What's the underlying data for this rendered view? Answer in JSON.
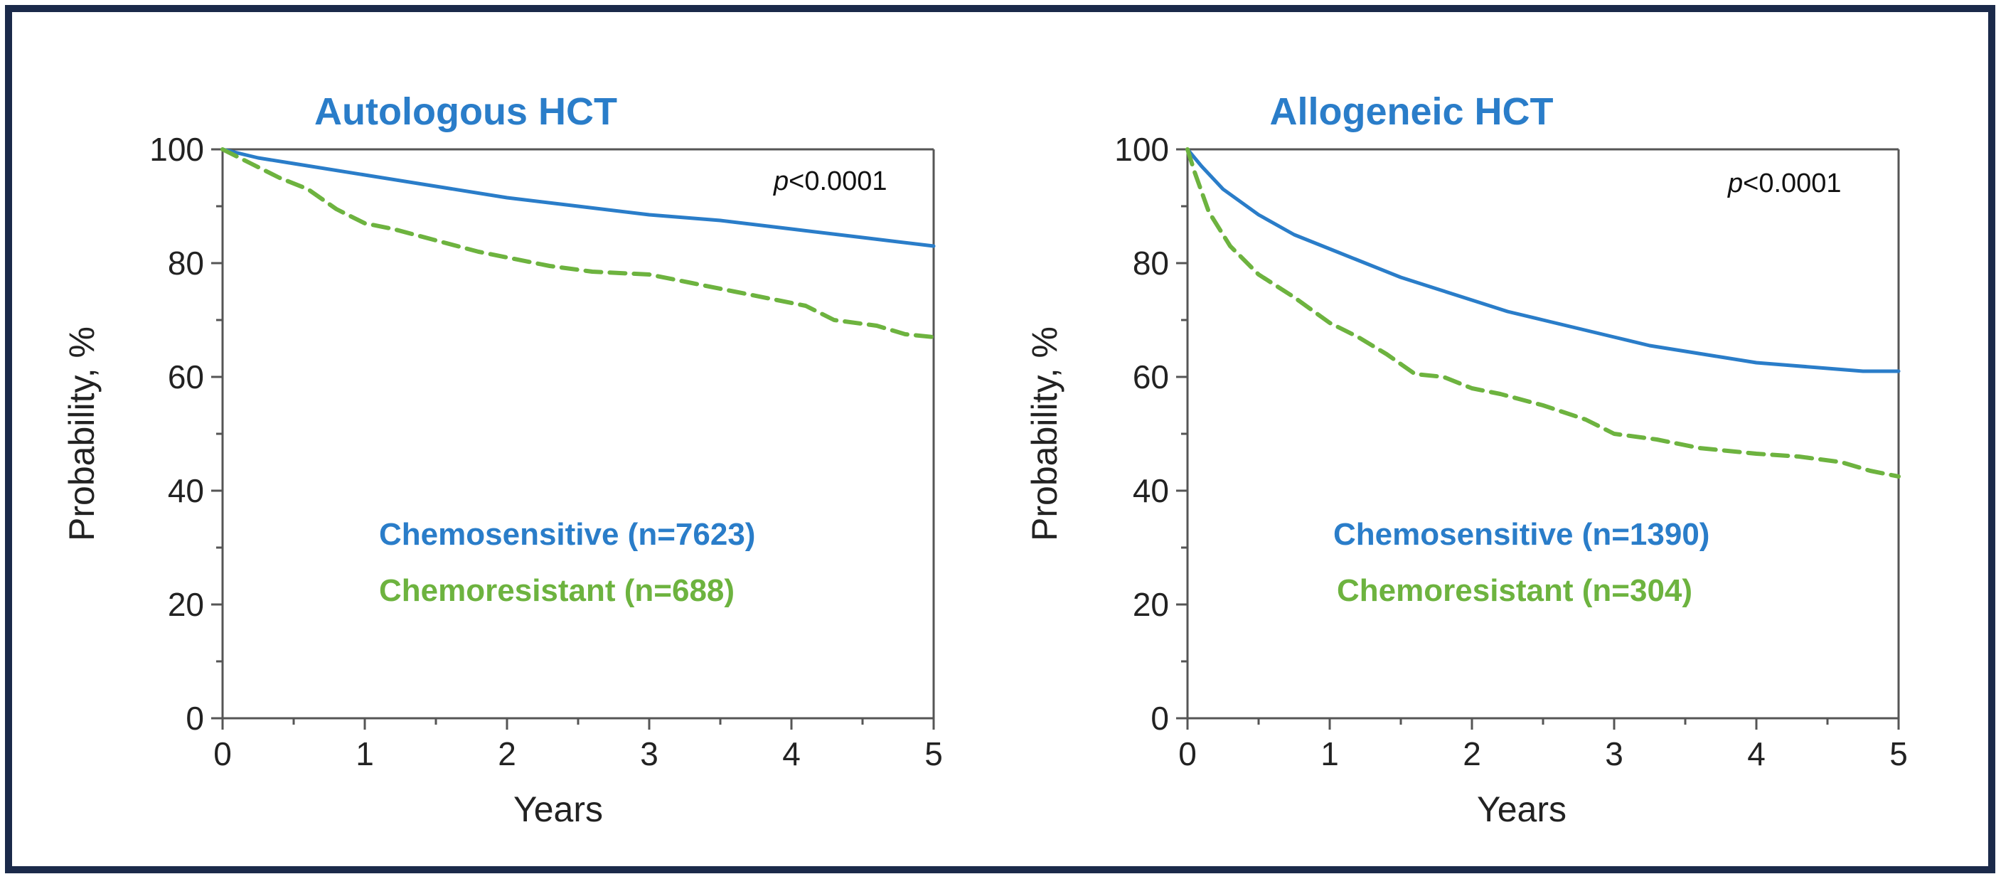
{
  "colors": {
    "chemosensitive": "#2a7dc9",
    "chemoresistant": "#6db33f",
    "axis": "#555555",
    "frame": "#1b2a4a"
  },
  "chart_data": [
    {
      "type": "line",
      "title": "Autologous HCT",
      "xlabel": "Years",
      "ylabel": "Probability, %",
      "xlim": [
        0,
        5
      ],
      "ylim": [
        0,
        100
      ],
      "xticks": [
        0,
        1,
        2,
        3,
        4,
        5
      ],
      "yticks": [
        0,
        20,
        40,
        60,
        80,
        100
      ],
      "annotation": {
        "italic": "p",
        "text": "<0.0001"
      },
      "series": [
        {
          "name": "Chemosensitive (n=7623)",
          "style": "solid",
          "x": [
            0,
            0.25,
            0.5,
            1,
            1.5,
            2,
            2.5,
            3,
            3.5,
            4,
            4.5,
            5
          ],
          "y": [
            100,
            98.5,
            97.5,
            95.5,
            93.5,
            91.5,
            90,
            88.5,
            87.5,
            86,
            84.5,
            83
          ]
        },
        {
          "name": "Chemoresistant (n=688)",
          "style": "dashed",
          "x": [
            0,
            0.2,
            0.4,
            0.6,
            0.8,
            1,
            1.2,
            1.5,
            1.8,
            2,
            2.3,
            2.6,
            3,
            3.3,
            3.6,
            3.9,
            4.1,
            4.3,
            4.6,
            4.8,
            5
          ],
          "y": [
            100,
            97.5,
            95,
            93,
            89.5,
            87,
            86,
            84,
            82,
            81,
            79.5,
            78.5,
            78,
            76.5,
            75,
            73.5,
            72.5,
            70,
            69,
            67.5,
            67
          ]
        }
      ]
    },
    {
      "type": "line",
      "title": "Allogeneic HCT",
      "xlabel": "Years",
      "ylabel": "Probability, %",
      "xlim": [
        0,
        5
      ],
      "ylim": [
        0,
        100
      ],
      "xticks": [
        0,
        1,
        2,
        3,
        4,
        5
      ],
      "yticks": [
        0,
        20,
        40,
        60,
        80,
        100
      ],
      "annotation": {
        "italic": "p",
        "text": "<0.0001"
      },
      "series": [
        {
          "name": "Chemosensitive (n=1390)",
          "style": "solid",
          "x": [
            0,
            0.1,
            0.25,
            0.5,
            0.75,
            1,
            1.25,
            1.5,
            1.75,
            2,
            2.25,
            2.5,
            2.75,
            3,
            3.25,
            3.5,
            3.75,
            4,
            4.25,
            4.5,
            4.75,
            5
          ],
          "y": [
            100,
            97,
            93,
            88.5,
            85,
            82.5,
            80,
            77.5,
            75.5,
            73.5,
            71.5,
            70,
            68.5,
            67,
            65.5,
            64.5,
            63.5,
            62.5,
            62,
            61.5,
            61,
            61
          ]
        },
        {
          "name": "Chemoresistant (n=304)",
          "style": "dashed",
          "x": [
            0,
            0.05,
            0.15,
            0.3,
            0.5,
            0.75,
            1,
            1.2,
            1.4,
            1.6,
            1.8,
            2,
            2.2,
            2.5,
            2.8,
            3,
            3.3,
            3.6,
            4,
            4.3,
            4.6,
            4.8,
            5
          ],
          "y": [
            100,
            96,
            89,
            83,
            78,
            74,
            69.5,
            67,
            64,
            60.5,
            60,
            58,
            57,
            55,
            52.5,
            50,
            49,
            47.5,
            46.5,
            46,
            45,
            43.5,
            42.5
          ]
        }
      ]
    }
  ]
}
